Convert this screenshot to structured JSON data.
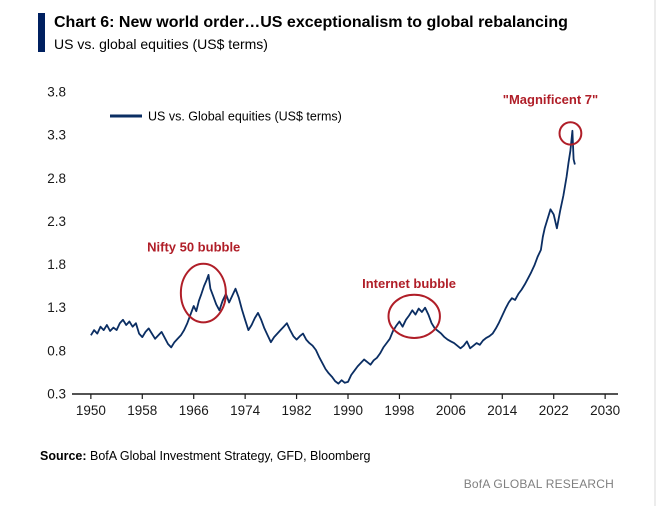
{
  "header": {
    "title": "Chart 6: New world order…US exceptionalism to global rebalancing",
    "subtitle": "US vs. global equities (US$ terms)"
  },
  "footer": {
    "source_label": "Source:",
    "source_text": " BofA Global Investment Strategy, GFD, Bloomberg",
    "brand": "BofA GLOBAL RESEARCH"
  },
  "colors": {
    "accent_bar": "#002060",
    "line": "#0b2e63",
    "annotation": "#b01e28",
    "axis": "#1a1a1a",
    "brand_gray": "#7f7f7f"
  },
  "chart_data": {
    "type": "line",
    "title": "US vs. global equities (US$ terms)",
    "legend": [
      "US vs. Global equities (US$ terms)"
    ],
    "legend_position": "top-left",
    "grid": false,
    "xlim": [
      1948,
      2032
    ],
    "ylim": [
      0.3,
      3.8
    ],
    "xticks": [
      1950,
      1958,
      1966,
      1974,
      1982,
      1990,
      1998,
      2006,
      2014,
      2022,
      2030
    ],
    "yticks": [
      0.3,
      0.8,
      1.3,
      1.8,
      2.3,
      2.8,
      3.3,
      3.8
    ],
    "annotation_color": "#b01e28",
    "series": [
      {
        "name": "US vs. Global equities (US$ terms)",
        "color": "#0b2e63",
        "points": [
          [
            1950.0,
            0.98
          ],
          [
            1950.5,
            1.04
          ],
          [
            1951.0,
            1.0
          ],
          [
            1951.5,
            1.08
          ],
          [
            1952.0,
            1.04
          ],
          [
            1952.5,
            1.1
          ],
          [
            1953.0,
            1.03
          ],
          [
            1953.5,
            1.07
          ],
          [
            1954.0,
            1.04
          ],
          [
            1954.5,
            1.12
          ],
          [
            1955.0,
            1.16
          ],
          [
            1955.5,
            1.1
          ],
          [
            1956.0,
            1.14
          ],
          [
            1956.5,
            1.08
          ],
          [
            1957.0,
            1.12
          ],
          [
            1957.5,
            1.0
          ],
          [
            1958.0,
            0.96
          ],
          [
            1958.5,
            1.02
          ],
          [
            1959.0,
            1.06
          ],
          [
            1959.5,
            1.0
          ],
          [
            1960.0,
            0.94
          ],
          [
            1960.5,
            0.98
          ],
          [
            1961.0,
            1.02
          ],
          [
            1961.5,
            0.95
          ],
          [
            1962.0,
            0.88
          ],
          [
            1962.5,
            0.84
          ],
          [
            1963.0,
            0.9
          ],
          [
            1963.5,
            0.94
          ],
          [
            1964.0,
            0.98
          ],
          [
            1964.5,
            1.04
          ],
          [
            1965.0,
            1.12
          ],
          [
            1965.5,
            1.22
          ],
          [
            1966.0,
            1.32
          ],
          [
            1966.4,
            1.26
          ],
          [
            1966.8,
            1.38
          ],
          [
            1967.2,
            1.46
          ],
          [
            1967.6,
            1.55
          ],
          [
            1968.0,
            1.62
          ],
          [
            1968.3,
            1.68
          ],
          [
            1968.6,
            1.52
          ],
          [
            1969.0,
            1.44
          ],
          [
            1969.5,
            1.34
          ],
          [
            1970.0,
            1.27
          ],
          [
            1970.5,
            1.38
          ],
          [
            1971.0,
            1.46
          ],
          [
            1971.5,
            1.36
          ],
          [
            1972.0,
            1.44
          ],
          [
            1972.5,
            1.52
          ],
          [
            1973.0,
            1.42
          ],
          [
            1973.5,
            1.28
          ],
          [
            1974.0,
            1.16
          ],
          [
            1974.5,
            1.04
          ],
          [
            1975.0,
            1.1
          ],
          [
            1975.5,
            1.18
          ],
          [
            1976.0,
            1.24
          ],
          [
            1976.5,
            1.16
          ],
          [
            1977.0,
            1.06
          ],
          [
            1977.5,
            0.98
          ],
          [
            1978.0,
            0.9
          ],
          [
            1978.5,
            0.96
          ],
          [
            1979.0,
            1.0
          ],
          [
            1979.5,
            1.04
          ],
          [
            1980.0,
            1.08
          ],
          [
            1980.5,
            1.12
          ],
          [
            1981.0,
            1.04
          ],
          [
            1981.5,
            0.97
          ],
          [
            1982.0,
            0.93
          ],
          [
            1982.5,
            0.97
          ],
          [
            1983.0,
            1.0
          ],
          [
            1983.5,
            0.93
          ],
          [
            1984.0,
            0.89
          ],
          [
            1984.5,
            0.86
          ],
          [
            1985.0,
            0.81
          ],
          [
            1985.5,
            0.73
          ],
          [
            1986.0,
            0.66
          ],
          [
            1986.5,
            0.59
          ],
          [
            1987.0,
            0.54
          ],
          [
            1987.5,
            0.5
          ],
          [
            1988.0,
            0.45
          ],
          [
            1988.5,
            0.42
          ],
          [
            1989.0,
            0.46
          ],
          [
            1989.5,
            0.43
          ],
          [
            1990.0,
            0.44
          ],
          [
            1990.5,
            0.52
          ],
          [
            1991.0,
            0.57
          ],
          [
            1991.5,
            0.62
          ],
          [
            1992.0,
            0.66
          ],
          [
            1992.5,
            0.7
          ],
          [
            1993.0,
            0.67
          ],
          [
            1993.5,
            0.64
          ],
          [
            1994.0,
            0.69
          ],
          [
            1994.5,
            0.72
          ],
          [
            1995.0,
            0.77
          ],
          [
            1995.5,
            0.84
          ],
          [
            1996.0,
            0.89
          ],
          [
            1996.5,
            0.94
          ],
          [
            1997.0,
            1.03
          ],
          [
            1997.5,
            1.09
          ],
          [
            1998.0,
            1.14
          ],
          [
            1998.5,
            1.08
          ],
          [
            1999.0,
            1.16
          ],
          [
            1999.5,
            1.21
          ],
          [
            2000.0,
            1.27
          ],
          [
            2000.5,
            1.22
          ],
          [
            2001.0,
            1.29
          ],
          [
            2001.5,
            1.25
          ],
          [
            2002.0,
            1.3
          ],
          [
            2002.5,
            1.22
          ],
          [
            2003.0,
            1.12
          ],
          [
            2003.5,
            1.06
          ],
          [
            2004.0,
            1.03
          ],
          [
            2004.5,
            1.0
          ],
          [
            2005.0,
            0.96
          ],
          [
            2005.5,
            0.93
          ],
          [
            2006.0,
            0.91
          ],
          [
            2006.5,
            0.89
          ],
          [
            2007.0,
            0.86
          ],
          [
            2007.5,
            0.83
          ],
          [
            2008.0,
            0.86
          ],
          [
            2008.5,
            0.91
          ],
          [
            2009.0,
            0.83
          ],
          [
            2009.5,
            0.86
          ],
          [
            2010.0,
            0.89
          ],
          [
            2010.5,
            0.87
          ],
          [
            2011.0,
            0.92
          ],
          [
            2011.5,
            0.95
          ],
          [
            2012.0,
            0.97
          ],
          [
            2012.5,
            1.0
          ],
          [
            2013.0,
            1.06
          ],
          [
            2013.5,
            1.13
          ],
          [
            2014.0,
            1.21
          ],
          [
            2014.5,
            1.29
          ],
          [
            2015.0,
            1.36
          ],
          [
            2015.5,
            1.41
          ],
          [
            2016.0,
            1.39
          ],
          [
            2016.5,
            1.46
          ],
          [
            2017.0,
            1.51
          ],
          [
            2017.5,
            1.57
          ],
          [
            2018.0,
            1.64
          ],
          [
            2018.5,
            1.71
          ],
          [
            2019.0,
            1.79
          ],
          [
            2019.5,
            1.89
          ],
          [
            2020.0,
            1.97
          ],
          [
            2020.3,
            2.12
          ],
          [
            2020.6,
            2.22
          ],
          [
            2021.0,
            2.32
          ],
          [
            2021.5,
            2.44
          ],
          [
            2022.0,
            2.38
          ],
          [
            2022.5,
            2.22
          ],
          [
            2023.0,
            2.42
          ],
          [
            2023.5,
            2.6
          ],
          [
            2024.0,
            2.82
          ],
          [
            2024.3,
            2.98
          ],
          [
            2024.6,
            3.12
          ],
          [
            2024.9,
            3.35
          ],
          [
            2025.1,
            3.02
          ],
          [
            2025.3,
            2.96
          ]
        ]
      }
    ],
    "annotations": [
      {
        "label": "Nifty 50 bubble",
        "text": {
          "x": 1966.0,
          "y": 1.95
        },
        "circle": {
          "x": 1967.5,
          "y": 1.47,
          "rx_years": 3.5,
          "ry_val": 0.34
        }
      },
      {
        "label": "Internet bubble",
        "text": {
          "x": 1999.5,
          "y": 1.53
        },
        "circle": {
          "x": 2000.3,
          "y": 1.2,
          "rx_years": 4.0,
          "ry_val": 0.25
        }
      },
      {
        "label": "\"Magnificent 7\"",
        "text": {
          "x": 2021.5,
          "y": 3.66
        },
        "circle": {
          "x": 2024.6,
          "y": 3.32,
          "rx_years": 1.7,
          "ry_val": 0.13
        }
      }
    ]
  }
}
